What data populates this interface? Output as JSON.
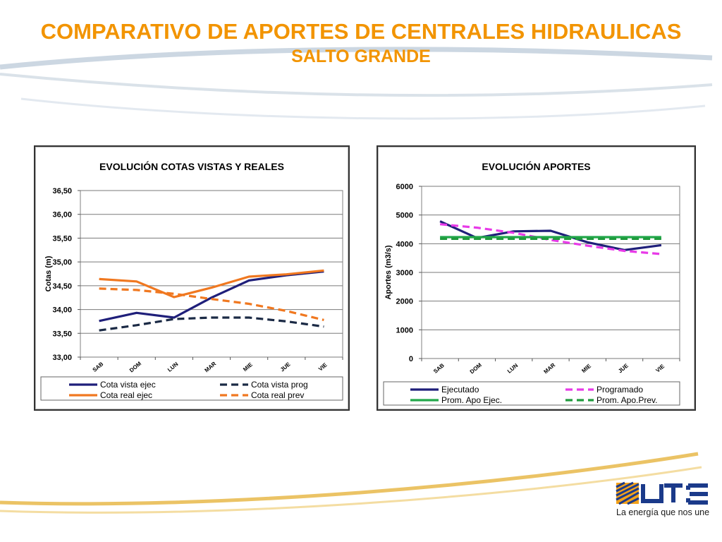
{
  "slide": {
    "title": "COMPARATIVO DE APORTES DE CENTRALES HIDRAULICAS",
    "subtitle": "SALTO GRANDE",
    "tagline": "La energía que nos une"
  },
  "colors": {
    "title": "#f29400",
    "navy": "#1f1f7a",
    "dark_blue": "#1b2a45",
    "orange": "#f07820",
    "magenta": "#e83ae8",
    "green": "#22a84a",
    "dark_green": "#1f9a3c"
  },
  "chart_data": [
    {
      "type": "line",
      "title": "EVOLUCIÓN  COTAS VISTAS Y REALES",
      "ylabel": "Cotas (m)",
      "xlabel": "",
      "categories": [
        "SAB",
        "DOM",
        "LUN",
        "MAR",
        "MIE",
        "JUE",
        "VIE"
      ],
      "ylim": [
        33.0,
        36.5
      ],
      "yticks": [
        "33,00",
        "33,50",
        "34,00",
        "34,50",
        "35,00",
        "35,50",
        "36,00",
        "36,50"
      ],
      "grid": true,
      "legend_position": "bottom",
      "series": [
        {
          "name": "Cota vista ejec",
          "values": [
            33.76,
            33.93,
            33.83,
            34.25,
            34.61,
            34.72,
            34.8
          ],
          "color": "#1f1f7a",
          "dash": "solid"
        },
        {
          "name": "Cota vista prog",
          "values": [
            33.56,
            33.67,
            33.8,
            33.83,
            33.83,
            33.75,
            33.64
          ],
          "color": "#1b2a45",
          "dash": "dashed"
        },
        {
          "name": "Cota real ejec",
          "values": [
            34.64,
            34.59,
            34.26,
            34.46,
            34.69,
            34.74,
            34.82
          ],
          "color": "#f07820",
          "dash": "solid"
        },
        {
          "name": "Cota real prev",
          "values": [
            34.44,
            34.41,
            34.33,
            34.22,
            34.12,
            33.97,
            33.78
          ],
          "color": "#f07820",
          "dash": "dashed"
        }
      ]
    },
    {
      "type": "line",
      "title": "EVOLUCIÓN  APORTES",
      "ylabel": "Aportes (m3/s)",
      "xlabel": "",
      "categories": [
        "SAB",
        "DOM",
        "LUN",
        "MAR",
        "MIE",
        "JUE",
        "VIE"
      ],
      "ylim": [
        0,
        6000
      ],
      "yticks": [
        "0",
        "1000",
        "2000",
        "3000",
        "4000",
        "5000",
        "6000"
      ],
      "grid": true,
      "legend_position": "bottom",
      "series": [
        {
          "name": "Ejecutado",
          "values": [
            4780,
            4200,
            4430,
            4450,
            4050,
            3780,
            3950
          ],
          "color": "#1f1f7a",
          "dash": "solid"
        },
        {
          "name": "Programado",
          "values": [
            4680,
            4560,
            4380,
            4130,
            3930,
            3750,
            3640
          ],
          "color": "#e83ae8",
          "dash": "dashed"
        },
        {
          "name": "Prom. Apo Ejec.",
          "values": [
            4230,
            4230,
            4230,
            4230,
            4230,
            4230,
            4230
          ],
          "color": "#22a84a",
          "dash": "solid"
        },
        {
          "name": "Prom. Apo.Prev.",
          "values": [
            4170,
            4170,
            4170,
            4170,
            4170,
            4170,
            4170
          ],
          "color": "#1f9a3c",
          "dash": "dashed"
        }
      ]
    }
  ]
}
